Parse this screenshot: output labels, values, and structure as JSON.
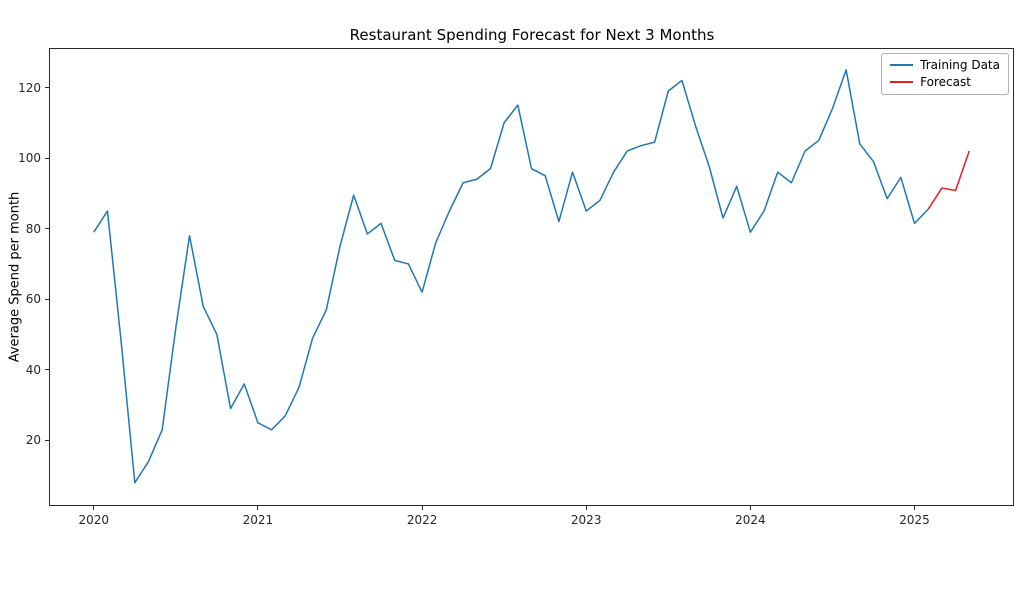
{
  "figure": {
    "background": "#ffffff"
  },
  "chart_data": {
    "type": "line",
    "title": "Restaurant Spending Forecast for Next 3 Months",
    "xlabel": "",
    "ylabel": "Average Spend per month",
    "grid": false,
    "x_axis": {
      "tick_labels": [
        "2020",
        "2021",
        "2022",
        "2023",
        "2024",
        "2025"
      ],
      "tick_positions_months": [
        0,
        12,
        24,
        36,
        48,
        60
      ],
      "xlim_months": [
        -3.2,
        67.2
      ]
    },
    "y_axis": {
      "tick_labels": [
        "20",
        "40",
        "60",
        "80",
        "100",
        "120"
      ],
      "tick_values": [
        20,
        40,
        60,
        80,
        100,
        120
      ],
      "ylim": [
        1.7,
        130.9
      ]
    },
    "legend": {
      "position": "upper right",
      "entries": [
        {
          "label": "Training Data",
          "color": "#1f77b4"
        },
        {
          "label": "Forecast",
          "color": "#e02020"
        }
      ]
    },
    "series": [
      {
        "name": "Training Data",
        "color": "#1f77b4",
        "line_width": 1.5,
        "x_start_month": 0,
        "x_step": 1,
        "values": [
          79,
          85,
          48,
          8,
          14,
          23,
          52,
          78,
          58,
          50,
          29,
          36,
          25,
          23,
          27,
          35,
          49,
          57,
          75,
          89.5,
          78.5,
          81.5,
          71,
          70,
          62,
          76,
          85,
          93,
          94,
          97,
          110,
          115,
          97,
          95,
          82,
          96,
          85,
          88,
          96,
          102,
          103.5,
          104.5,
          119,
          122,
          109,
          97.5,
          83,
          92,
          79,
          85,
          96,
          93,
          102,
          105,
          114,
          125,
          104,
          99,
          88.5,
          94.5,
          81.5,
          85.5
        ]
      },
      {
        "name": "Forecast",
        "color": "#e02020",
        "line_width": 1.5,
        "x_months": [
          61,
          62,
          63,
          64
        ],
        "values": [
          85.5,
          91.5,
          90.8,
          102
        ]
      }
    ]
  }
}
